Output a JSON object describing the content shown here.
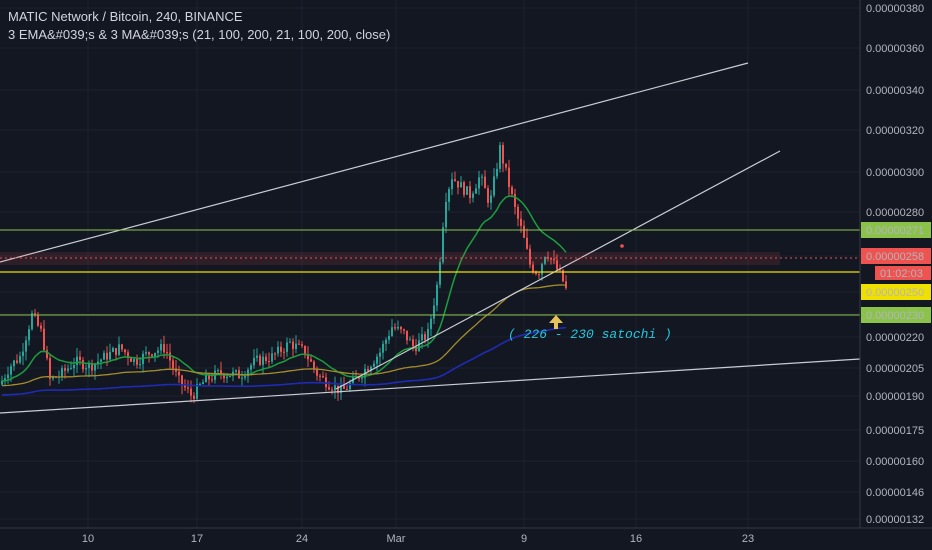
{
  "header": {
    "title": "MATIC Network / Bitcoin, 240, BINANCE",
    "indicator": "3 EMA&#039;s & 3 MA&#039;s (21, 100, 200, 21, 100, 200, close)"
  },
  "annotation": "( 226 - 230 satochi )",
  "colors": {
    "background": "#131722",
    "up": "#26a69a",
    "down": "#ef5350",
    "ema21": "#1b9e3e",
    "ema100": "#a58d2b",
    "ema200": "#1f2bb5",
    "trendline": "#c9ccd3",
    "hline_green": "#8bc34a",
    "hline_yellow": "#f0e000",
    "arrow": "#e6c25a"
  },
  "chart_data": {
    "type": "candlestick",
    "symbol": "MATIC Network / Bitcoin",
    "interval": "240",
    "exchange": "BINANCE",
    "y_ticks": [
      "0.00000380",
      "0.00000360",
      "0.00000340",
      "0.00000320",
      "0.00000300",
      "0.00000280",
      "0.00000258",
      "0.00000250",
      "0.00000230",
      "0.00000220",
      "0.00000205",
      "0.00000190",
      "0.00000175",
      "0.00000160",
      "0.00000146",
      "0.00000132"
    ],
    "x_ticks": [
      "10",
      "17",
      "24",
      "Mar",
      "9",
      "16",
      "23"
    ],
    "key_points": [
      {
        "date": "Feb 5",
        "close": 2.1e-06
      },
      {
        "date": "Feb 6",
        "high": 2.5e-06,
        "close": 2.4e-06
      },
      {
        "date": "Feb 8",
        "close": 2.2e-06
      },
      {
        "date": "Feb 12",
        "close": 2.2e-06
      },
      {
        "date": "Feb 14",
        "close": 2.3e-06
      },
      {
        "date": "Feb 17",
        "low": 2e-06,
        "close": 2.1e-06
      },
      {
        "date": "Feb 20",
        "close": 2.2e-06
      },
      {
        "date": "Feb 24",
        "close": 2.2e-06
      },
      {
        "date": "Feb 26",
        "low": 2e-06,
        "close": 2.1e-06
      },
      {
        "date": "Feb 28",
        "close": 2.2e-06
      },
      {
        "date": "Mar 1",
        "close": 2.4e-06
      },
      {
        "date": "Mar 3",
        "close": 2.6e-06
      },
      {
        "date": "Mar 4",
        "high": 3.1e-06,
        "close": 2.9e-06
      },
      {
        "date": "Mar 8",
        "high": 3.2e-06,
        "close": 3e-06
      },
      {
        "date": "Mar 9",
        "close": 2.7e-06
      },
      {
        "date": "Mar 10",
        "low": 2.5e-06,
        "close": 2.6e-06
      },
      {
        "date": "Mar 11",
        "close": 2.5e-06
      }
    ],
    "horizontal_levels": [
      {
        "value": "0.00000271",
        "color": "green"
      },
      {
        "value": "0.00000258",
        "color": "red-dotted",
        "label": "current price"
      },
      {
        "value": "0.00000250",
        "color": "yellow"
      },
      {
        "value": "0.00000230",
        "color": "green"
      }
    ],
    "countdown": "01:02:03",
    "series": [
      {
        "name": "EMA 21"
      },
      {
        "name": "EMA 100"
      },
      {
        "name": "EMA 200"
      }
    ]
  }
}
